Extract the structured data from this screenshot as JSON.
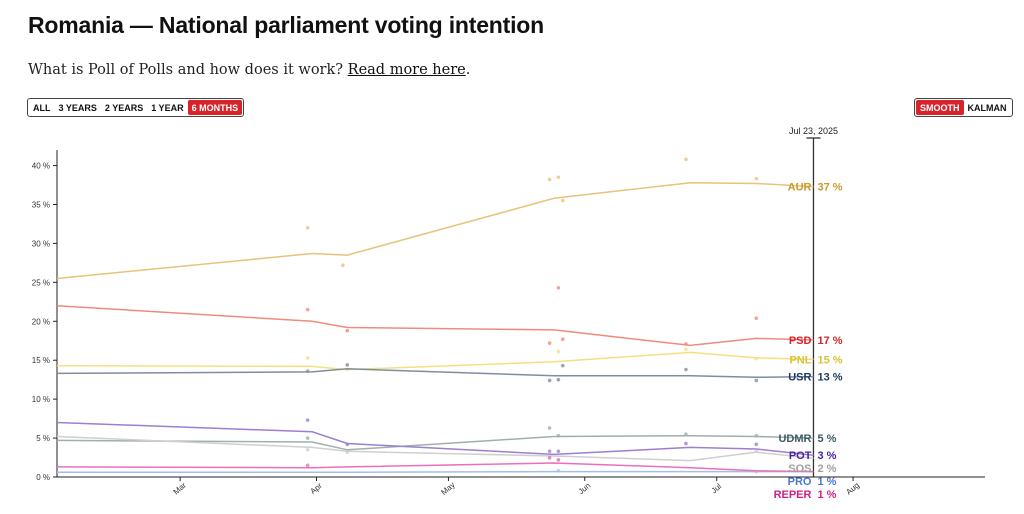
{
  "header": {
    "title": "Romania — National parliament voting intention",
    "subtitle_text": "What is Poll of Polls and how does it work?",
    "subtitle_link": "Read more here",
    "subtitle_end": "."
  },
  "controls": {
    "range": [
      {
        "label": "ALL",
        "active": false
      },
      {
        "label": "3 YEARS",
        "active": false
      },
      {
        "label": "2 YEARS",
        "active": false
      },
      {
        "label": "1 YEAR",
        "active": false
      },
      {
        "label": "6 MONTHS",
        "active": true
      }
    ],
    "mode": [
      {
        "label": "SMOOTH",
        "active": true
      },
      {
        "label": "KALMAN",
        "active": false
      }
    ]
  },
  "colors": {
    "accent": "#d8232a"
  },
  "chart_data": {
    "type": "line",
    "current_date_label": "Jul 23, 2025",
    "y_ticks": [
      "0 %",
      "5 %",
      "10 %",
      "15 %",
      "20 %",
      "25 %",
      "30 %",
      "35 %",
      "40 %"
    ],
    "ylim": [
      0,
      42
    ],
    "x_ticks": [
      "Mar",
      "Apr",
      "May",
      "Jun",
      "Jul",
      "Aug"
    ],
    "xlim": [
      "2025-02-01",
      "2025-08-31"
    ],
    "current_date": "2025-07-23",
    "series": [
      {
        "name": "AUR",
        "value_label": "37 %",
        "color": "#e8c37a",
        "label_color": "#c99a2e",
        "x": [
          "2025-02-01",
          "2025-03-31",
          "2025-04-08",
          "2025-05-25",
          "2025-06-25",
          "2025-07-10",
          "2025-07-23"
        ],
        "values": [
          25.5,
          28.7,
          28.5,
          35.8,
          37.8,
          37.7,
          37.3
        ],
        "polls": [
          {
            "x": "2025-03-30",
            "y": 32
          },
          {
            "x": "2025-04-07",
            "y": 27.2
          },
          {
            "x": "2025-05-24",
            "y": 38.2
          },
          {
            "x": "2025-05-26",
            "y": 38.5
          },
          {
            "x": "2025-05-27",
            "y": 35.5
          },
          {
            "x": "2025-06-24",
            "y": 40.8
          },
          {
            "x": "2025-07-10",
            "y": 38.3
          }
        ]
      },
      {
        "name": "PSD",
        "value_label": "17 %",
        "color": "#f08a80",
        "label_color": "#d8232a",
        "x": [
          "2025-02-01",
          "2025-03-31",
          "2025-04-08",
          "2025-05-25",
          "2025-06-25",
          "2025-07-10",
          "2025-07-23"
        ],
        "values": [
          22,
          20,
          19.2,
          18.9,
          16.9,
          17.8,
          17.6
        ],
        "polls": [
          {
            "x": "2025-03-30",
            "y": 21.5
          },
          {
            "x": "2025-04-08",
            "y": 18.8
          },
          {
            "x": "2025-05-24",
            "y": 17.2
          },
          {
            "x": "2025-05-26",
            "y": 24.3
          },
          {
            "x": "2025-05-27",
            "y": 17.7
          },
          {
            "x": "2025-06-24",
            "y": 17.1
          },
          {
            "x": "2025-07-10",
            "y": 20.4
          }
        ]
      },
      {
        "name": "PNL",
        "value_label": "15 %",
        "color": "#f5e07f",
        "label_color": "#d9c13a",
        "x": [
          "2025-02-01",
          "2025-03-31",
          "2025-04-08",
          "2025-05-25",
          "2025-06-25",
          "2025-07-10",
          "2025-07-23"
        ],
        "values": [
          14.3,
          14.2,
          13.8,
          14.8,
          16,
          15.3,
          15.1
        ],
        "polls": [
          {
            "x": "2025-03-30",
            "y": 15.3
          },
          {
            "x": "2025-04-08",
            "y": 13.8
          },
          {
            "x": "2025-05-26",
            "y": 16.1
          },
          {
            "x": "2025-06-24",
            "y": 16.4
          },
          {
            "x": "2025-07-10",
            "y": 15.2
          }
        ]
      },
      {
        "name": "USR",
        "value_label": "13 %",
        "color": "#7d8ea3",
        "label_color": "#1d3a5f",
        "x": [
          "2025-02-01",
          "2025-03-31",
          "2025-04-08",
          "2025-05-25",
          "2025-06-25",
          "2025-07-10",
          "2025-07-23"
        ],
        "values": [
          13.3,
          13.5,
          13.9,
          13.0,
          13.0,
          12.8,
          12.9
        ],
        "polls": [
          {
            "x": "2025-03-30",
            "y": 13.6
          },
          {
            "x": "2025-04-08",
            "y": 14.4
          },
          {
            "x": "2025-05-24",
            "y": 12.4
          },
          {
            "x": "2025-05-26",
            "y": 12.5
          },
          {
            "x": "2025-05-27",
            "y": 14.3
          },
          {
            "x": "2025-06-24",
            "y": 13.8
          },
          {
            "x": "2025-07-10",
            "y": 12.4
          }
        ]
      },
      {
        "name": "UDMR",
        "value_label": "5 %",
        "color": "#9fb0aa",
        "label_color": "#3f5a66",
        "x": [
          "2025-02-01",
          "2025-03-31",
          "2025-04-08",
          "2025-05-25",
          "2025-06-25",
          "2025-07-10",
          "2025-07-23"
        ],
        "values": [
          4.7,
          4.5,
          3.5,
          5.2,
          5.3,
          5.2,
          5.0
        ],
        "polls": [
          {
            "x": "2025-03-30",
            "y": 5.0
          },
          {
            "x": "2025-05-24",
            "y": 6.3
          },
          {
            "x": "2025-05-26",
            "y": 5.3
          },
          {
            "x": "2025-06-24",
            "y": 5.5
          },
          {
            "x": "2025-07-10",
            "y": 5.3
          }
        ]
      },
      {
        "name": "POT",
        "value_label": "3 %",
        "color": "#9b7fd0",
        "label_color": "#4b1f9e",
        "x": [
          "2025-02-01",
          "2025-03-31",
          "2025-04-08",
          "2025-05-25",
          "2025-06-25",
          "2025-07-10",
          "2025-07-23"
        ],
        "values": [
          7,
          5.8,
          4.3,
          2.9,
          3.8,
          3.6,
          2.8
        ],
        "polls": [
          {
            "x": "2025-03-30",
            "y": 7.3
          },
          {
            "x": "2025-04-08",
            "y": 4.2
          },
          {
            "x": "2025-05-24",
            "y": 3.3
          },
          {
            "x": "2025-05-26",
            "y": 3.3
          },
          {
            "x": "2025-06-24",
            "y": 4.3
          },
          {
            "x": "2025-07-10",
            "y": 4.2
          }
        ]
      },
      {
        "name": "SOS",
        "value_label": "2 %",
        "color": "#cfcfcf",
        "label_color": "#a0a0a0",
        "x": [
          "2025-02-01",
          "2025-03-31",
          "2025-04-08",
          "2025-05-25",
          "2025-06-25",
          "2025-07-10",
          "2025-07-23"
        ],
        "values": [
          5.2,
          3.8,
          3.3,
          2.7,
          2.1,
          3.2,
          2.4
        ],
        "polls": [
          {
            "x": "2025-03-30",
            "y": 3.5
          },
          {
            "x": "2025-04-08",
            "y": 3.2
          },
          {
            "x": "2025-05-24",
            "y": 2.4
          },
          {
            "x": "2025-05-26",
            "y": 2.2
          },
          {
            "x": "2025-07-10",
            "y": 3.3
          }
        ]
      },
      {
        "name": "PRO",
        "value_label": "1 %",
        "color": "#a4bdf0",
        "label_color": "#4b78d8",
        "x": [
          "2025-02-01",
          "2025-03-31",
          "2025-04-08",
          "2025-05-25",
          "2025-06-25",
          "2025-07-10",
          "2025-07-23"
        ],
        "values": [
          0.6,
          0.6,
          0.6,
          0.7,
          0.7,
          0.7,
          0.7
        ],
        "polls": [
          {
            "x": "2025-05-26",
            "y": 0.8
          },
          {
            "x": "2025-07-10",
            "y": 0.7
          }
        ]
      },
      {
        "name": "REPER",
        "value_label": "1 %",
        "color": "#ec6fb8",
        "label_color": "#d21f85",
        "x": [
          "2025-02-01",
          "2025-03-31",
          "2025-04-08",
          "2025-05-25",
          "2025-06-25",
          "2025-07-10",
          "2025-07-23"
        ],
        "values": [
          1.3,
          1.2,
          1.3,
          1.8,
          1.2,
          0.8,
          0.7
        ],
        "polls": [
          {
            "x": "2025-03-30",
            "y": 1.5
          },
          {
            "x": "2025-05-24",
            "y": 2.5
          },
          {
            "x": "2025-05-26",
            "y": 2.2
          }
        ]
      }
    ]
  }
}
